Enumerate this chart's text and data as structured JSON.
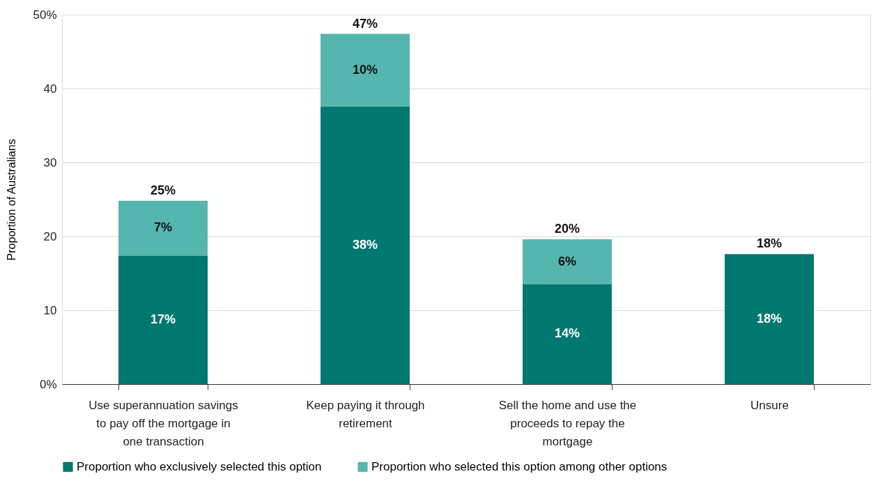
{
  "chart_data": {
    "type": "bar",
    "stacked": true,
    "ylabel": "Proportion of Australians",
    "categories": [
      "Use superannuation savings to pay off the mortgage in one transaction",
      "Keep paying it through retirement",
      "Sell the home and use the proceeds to repay the mortgage",
      "Unsure"
    ],
    "series": [
      {
        "name": "Proportion who exclusively selected this option",
        "color": "#00776f",
        "values": [
          17.4,
          37.6,
          13.5,
          17.6
        ],
        "value_labels": [
          "17%",
          "38%",
          "14%",
          "18%"
        ]
      },
      {
        "name": "Proportion who selected this option among other options",
        "color": "#55b6b0",
        "values": [
          7.4,
          9.8,
          6.1,
          null
        ],
        "value_labels": [
          "7%",
          "10%",
          "6%",
          null
        ]
      }
    ],
    "totals": [
      "25%",
      "47%",
      "20%",
      "18%"
    ],
    "ylim": [
      0,
      50
    ],
    "yticks": [
      {
        "value": 0,
        "label": "0%"
      },
      10,
      20,
      30,
      40,
      {
        "value": 50,
        "label": "50%"
      }
    ],
    "grid": "y",
    "legend": "bottom"
  }
}
